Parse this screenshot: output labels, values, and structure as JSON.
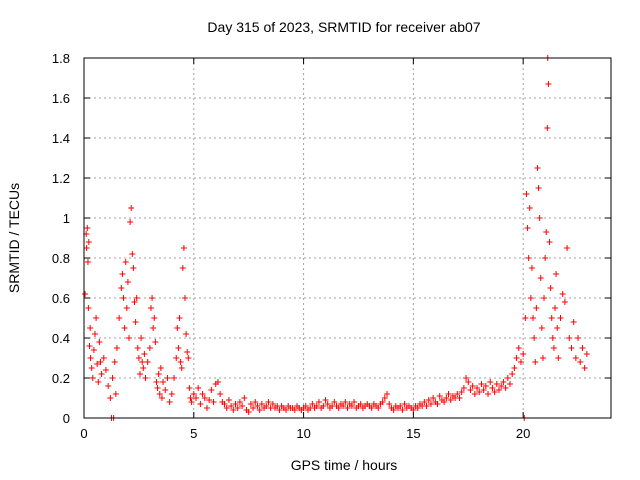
{
  "chart_data": {
    "type": "scatter",
    "title": "Day 315 of 2023, SRMTID for receiver ab07",
    "xlabel": "GPS time / hours",
    "ylabel": "SRMTID / TECUs",
    "xlim": [
      0,
      24
    ],
    "ylim": [
      0,
      1.8
    ],
    "xticks": [
      0,
      5,
      10,
      15,
      20
    ],
    "yticks": [
      0,
      0.2,
      0.4,
      0.6,
      0.8,
      1,
      1.2,
      1.4,
      1.6,
      1.8
    ],
    "xtick_labels": [
      "0",
      "5",
      "10",
      "15",
      "20"
    ],
    "ytick_labels": [
      "0",
      "0.2",
      "0.4",
      "0.6",
      "0.8",
      "1",
      "1.2",
      "1.4",
      "1.6",
      "1.8"
    ],
    "grid": true,
    "marker": "plus",
    "color": "#ff0000",
    "series": [
      {
        "name": "SRMTID",
        "points": [
          [
            0.05,
            0.62
          ],
          [
            0.1,
            0.92
          ],
          [
            0.12,
            0.85
          ],
          [
            0.15,
            0.95
          ],
          [
            0.18,
            0.78
          ],
          [
            0.2,
            0.55
          ],
          [
            0.22,
            0.88
          ],
          [
            0.25,
            0.36
          ],
          [
            0.28,
            0.45
          ],
          [
            0.3,
            0.3
          ],
          [
            0.35,
            0.25
          ],
          [
            0.4,
            0.2
          ],
          [
            0.45,
            0.34
          ],
          [
            0.5,
            0.42
          ],
          [
            0.55,
            0.5
          ],
          [
            0.6,
            0.27
          ],
          [
            0.65,
            0.18
          ],
          [
            0.7,
            0.38
          ],
          [
            0.75,
            0.28
          ],
          [
            0.8,
            0.22
          ],
          [
            0.9,
            0.3
          ],
          [
            1.0,
            0.24
          ],
          [
            1.1,
            0.16
          ],
          [
            1.2,
            0.1
          ],
          [
            1.25,
            0.0
          ],
          [
            1.3,
            0.2
          ],
          [
            1.35,
            0.0
          ],
          [
            1.4,
            0.28
          ],
          [
            1.45,
            0.12
          ],
          [
            1.5,
            0.35
          ],
          [
            1.6,
            0.5
          ],
          [
            1.7,
            0.65
          ],
          [
            1.75,
            0.72
          ],
          [
            1.8,
            0.6
          ],
          [
            1.85,
            0.45
          ],
          [
            1.9,
            0.78
          ],
          [
            1.95,
            0.55
          ],
          [
            2.0,
            0.68
          ],
          [
            2.05,
            0.4
          ],
          [
            2.1,
            0.98
          ],
          [
            2.15,
            1.05
          ],
          [
            2.2,
            0.82
          ],
          [
            2.25,
            0.75
          ],
          [
            2.3,
            0.58
          ],
          [
            2.35,
            0.48
          ],
          [
            2.4,
            0.6
          ],
          [
            2.45,
            0.35
          ],
          [
            2.5,
            0.3
          ],
          [
            2.55,
            0.22
          ],
          [
            2.6,
            0.4
          ],
          [
            2.65,
            0.28
          ],
          [
            2.7,
            0.25
          ],
          [
            2.75,
            0.32
          ],
          [
            2.8,
            0.2
          ],
          [
            2.9,
            0.28
          ],
          [
            3.0,
            0.35
          ],
          [
            3.05,
            0.55
          ],
          [
            3.1,
            0.6
          ],
          [
            3.15,
            0.45
          ],
          [
            3.2,
            0.5
          ],
          [
            3.25,
            0.38
          ],
          [
            3.3,
            0.18
          ],
          [
            3.35,
            0.15
          ],
          [
            3.4,
            0.22
          ],
          [
            3.45,
            0.12
          ],
          [
            3.5,
            0.25
          ],
          [
            3.55,
            0.1
          ],
          [
            3.6,
            0.18
          ],
          [
            3.7,
            0.14
          ],
          [
            3.8,
            0.2
          ],
          [
            3.9,
            0.08
          ],
          [
            4.0,
            0.12
          ],
          [
            4.1,
            0.2
          ],
          [
            4.2,
            0.3
          ],
          [
            4.25,
            0.45
          ],
          [
            4.3,
            0.35
          ],
          [
            4.35,
            0.5
          ],
          [
            4.4,
            0.28
          ],
          [
            4.45,
            0.25
          ],
          [
            4.5,
            0.75
          ],
          [
            4.55,
            0.85
          ],
          [
            4.6,
            0.6
          ],
          [
            4.65,
            0.42
          ],
          [
            4.7,
            0.33
          ],
          [
            4.75,
            0.3
          ],
          [
            4.8,
            0.15
          ],
          [
            4.85,
            0.1
          ],
          [
            4.9,
            0.08
          ],
          [
            5.0,
            0.12
          ],
          [
            5.1,
            0.1
          ],
          [
            5.2,
            0.15
          ],
          [
            5.3,
            0.07
          ],
          [
            5.4,
            0.12
          ],
          [
            5.5,
            0.1
          ],
          [
            5.6,
            0.05
          ],
          [
            5.7,
            0.09
          ],
          [
            5.8,
            0.14
          ],
          [
            5.9,
            0.08
          ],
          [
            6.0,
            0.17
          ],
          [
            6.1,
            0.18
          ],
          [
            6.2,
            0.12
          ],
          [
            6.3,
            0.08
          ],
          [
            6.4,
            0.07
          ],
          [
            6.5,
            0.05
          ],
          [
            6.6,
            0.09
          ],
          [
            6.7,
            0.06
          ],
          [
            6.8,
            0.04
          ],
          [
            6.9,
            0.07
          ],
          [
            7.0,
            0.05
          ],
          [
            7.1,
            0.08
          ],
          [
            7.2,
            0.06
          ],
          [
            7.3,
            0.1
          ],
          [
            7.4,
            0.04
          ],
          [
            7.5,
            0.03
          ],
          [
            7.6,
            0.07
          ],
          [
            7.7,
            0.05
          ],
          [
            7.8,
            0.08
          ],
          [
            7.9,
            0.06
          ],
          [
            8.0,
            0.04
          ],
          [
            8.1,
            0.07
          ],
          [
            8.2,
            0.05
          ],
          [
            8.3,
            0.06
          ],
          [
            8.4,
            0.08
          ],
          [
            8.5,
            0.05
          ],
          [
            8.6,
            0.07
          ],
          [
            8.7,
            0.05
          ],
          [
            8.8,
            0.06
          ],
          [
            8.9,
            0.04
          ],
          [
            9.0,
            0.06
          ],
          [
            9.1,
            0.05
          ],
          [
            9.2,
            0.04
          ],
          [
            9.3,
            0.06
          ],
          [
            9.4,
            0.05
          ],
          [
            9.5,
            0.05
          ],
          [
            9.6,
            0.04
          ],
          [
            9.7,
            0.06
          ],
          [
            9.8,
            0.05
          ],
          [
            9.9,
            0.04
          ],
          [
            10.0,
            0.05
          ],
          [
            10.1,
            0.06
          ],
          [
            10.2,
            0.04
          ],
          [
            10.3,
            0.05
          ],
          [
            10.4,
            0.07
          ],
          [
            10.5,
            0.05
          ],
          [
            10.6,
            0.06
          ],
          [
            10.7,
            0.08
          ],
          [
            10.8,
            0.05
          ],
          [
            10.9,
            0.06
          ],
          [
            11.0,
            0.09
          ],
          [
            11.1,
            0.07
          ],
          [
            11.2,
            0.05
          ],
          [
            11.3,
            0.06
          ],
          [
            11.4,
            0.08
          ],
          [
            11.5,
            0.06
          ],
          [
            11.6,
            0.05
          ],
          [
            11.7,
            0.07
          ],
          [
            11.8,
            0.06
          ],
          [
            11.9,
            0.08
          ],
          [
            12.0,
            0.05
          ],
          [
            12.1,
            0.07
          ],
          [
            12.2,
            0.06
          ],
          [
            12.3,
            0.08
          ],
          [
            12.4,
            0.05
          ],
          [
            12.5,
            0.06
          ],
          [
            12.6,
            0.07
          ],
          [
            12.7,
            0.05
          ],
          [
            12.8,
            0.06
          ],
          [
            12.9,
            0.07
          ],
          [
            13.0,
            0.06
          ],
          [
            13.1,
            0.05
          ],
          [
            13.2,
            0.07
          ],
          [
            13.3,
            0.06
          ],
          [
            13.4,
            0.05
          ],
          [
            13.5,
            0.07
          ],
          [
            13.6,
            0.08
          ],
          [
            13.7,
            0.1
          ],
          [
            13.8,
            0.12
          ],
          [
            13.9,
            0.07
          ],
          [
            14.0,
            0.05
          ],
          [
            14.1,
            0.04
          ],
          [
            14.2,
            0.06
          ],
          [
            14.3,
            0.05
          ],
          [
            14.4,
            0.06
          ],
          [
            14.5,
            0.04
          ],
          [
            14.6,
            0.07
          ],
          [
            14.7,
            0.05
          ],
          [
            14.8,
            0.06
          ],
          [
            14.9,
            0.05
          ],
          [
            15.0,
            0.04
          ],
          [
            15.1,
            0.06
          ],
          [
            15.2,
            0.05
          ],
          [
            15.3,
            0.07
          ],
          [
            15.4,
            0.06
          ],
          [
            15.5,
            0.08
          ],
          [
            15.6,
            0.06
          ],
          [
            15.7,
            0.09
          ],
          [
            15.8,
            0.07
          ],
          [
            15.9,
            0.1
          ],
          [
            16.0,
            0.08
          ],
          [
            16.1,
            0.07
          ],
          [
            16.2,
            0.11
          ],
          [
            16.3,
            0.09
          ],
          [
            16.4,
            0.08
          ],
          [
            16.5,
            0.1
          ],
          [
            16.6,
            0.12
          ],
          [
            16.7,
            0.09
          ],
          [
            16.8,
            0.11
          ],
          [
            16.9,
            0.1
          ],
          [
            17.0,
            0.12
          ],
          [
            17.1,
            0.1
          ],
          [
            17.2,
            0.13
          ],
          [
            17.3,
            0.15
          ],
          [
            17.4,
            0.2
          ],
          [
            17.5,
            0.18
          ],
          [
            17.6,
            0.14
          ],
          [
            17.7,
            0.16
          ],
          [
            17.8,
            0.12
          ],
          [
            17.9,
            0.15
          ],
          [
            18.0,
            0.13
          ],
          [
            18.1,
            0.17
          ],
          [
            18.2,
            0.14
          ],
          [
            18.3,
            0.16
          ],
          [
            18.4,
            0.12
          ],
          [
            18.5,
            0.18
          ],
          [
            18.6,
            0.15
          ],
          [
            18.7,
            0.13
          ],
          [
            18.8,
            0.17
          ],
          [
            18.9,
            0.14
          ],
          [
            19.0,
            0.16
          ],
          [
            19.1,
            0.18
          ],
          [
            19.2,
            0.15
          ],
          [
            19.3,
            0.2
          ],
          [
            19.4,
            0.17
          ],
          [
            19.5,
            0.22
          ],
          [
            19.6,
            0.25
          ],
          [
            19.7,
            0.3
          ],
          [
            19.8,
            0.35
          ],
          [
            19.9,
            0.28
          ],
          [
            20.0,
            0.32
          ],
          [
            20.05,
            0.0
          ],
          [
            20.1,
            0.5
          ],
          [
            20.15,
            1.12
          ],
          [
            20.2,
            0.95
          ],
          [
            20.25,
            0.8
          ],
          [
            20.3,
            1.05
          ],
          [
            20.35,
            0.6
          ],
          [
            20.4,
            0.75
          ],
          [
            20.45,
            0.5
          ],
          [
            20.5,
            0.4
          ],
          [
            20.55,
            0.28
          ],
          [
            20.6,
            0.55
          ],
          [
            20.65,
            1.25
          ],
          [
            20.7,
            1.15
          ],
          [
            20.75,
            1.0
          ],
          [
            20.8,
            0.7
          ],
          [
            20.85,
            0.45
          ],
          [
            20.9,
            0.3
          ],
          [
            20.95,
            0.6
          ],
          [
            21.0,
            0.8
          ],
          [
            21.05,
            0.93
          ],
          [
            21.1,
            1.45
          ],
          [
            21.12,
            1.8
          ],
          [
            21.15,
            1.67
          ],
          [
            21.2,
            0.88
          ],
          [
            21.25,
            0.65
          ],
          [
            21.3,
            0.5
          ],
          [
            21.35,
            0.4
          ],
          [
            21.4,
            0.35
          ],
          [
            21.45,
            0.55
          ],
          [
            21.5,
            0.72
          ],
          [
            21.55,
            0.45
          ],
          [
            21.6,
            0.3
          ],
          [
            21.7,
            0.5
          ],
          [
            21.8,
            0.62
          ],
          [
            21.9,
            0.58
          ],
          [
            22.0,
            0.85
          ],
          [
            22.1,
            0.4
          ],
          [
            22.2,
            0.35
          ],
          [
            22.3,
            0.48
          ],
          [
            22.4,
            0.3
          ],
          [
            22.5,
            0.4
          ],
          [
            22.6,
            0.28
          ],
          [
            22.7,
            0.35
          ],
          [
            22.8,
            0.25
          ],
          [
            22.9,
            0.32
          ]
        ]
      }
    ]
  }
}
